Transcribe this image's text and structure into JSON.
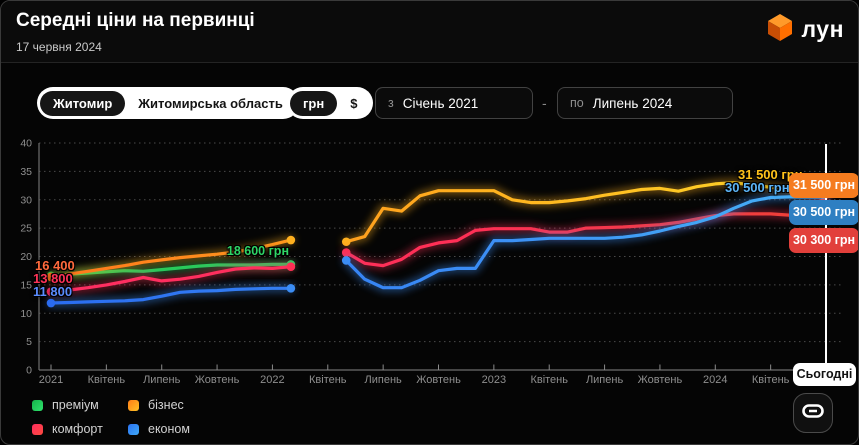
{
  "header": {
    "title": "Середні ціни на первинці",
    "date": "17 червня 2024",
    "logo_text": "лун",
    "brand_color": "#ff7a00"
  },
  "filters": {
    "city_toggle": {
      "options": [
        "Житомир",
        "Житомирська область"
      ],
      "selected": "Житомир"
    },
    "currency_toggle": {
      "options": [
        "грн",
        "$"
      ],
      "selected": "грн"
    },
    "date_from": {
      "prefix": "з",
      "value": "Січень 2021"
    },
    "range_separator": "-",
    "date_to": {
      "prefix": "по",
      "value": "Липень 2024"
    }
  },
  "chart_data": {
    "type": "line",
    "title": "Середні ціни на первинці, грн",
    "x_start": "Січень 2021",
    "x_end": "Липень 2024",
    "x_unit": "month",
    "x_tick_labels": [
      "2021",
      "Квітень",
      "Липень",
      "Жовтень",
      "2022",
      "Квітень",
      "Липень",
      "Жовтень",
      "2023",
      "Квітень",
      "Липень",
      "Жовтень",
      "2024",
      "Квітень"
    ],
    "y_ticks": [
      0,
      5,
      10,
      15,
      20,
      25,
      30,
      35,
      40
    ],
    "ylim": [
      0,
      40
    ],
    "y_scale_note": "тис. грн",
    "grid": "dotted",
    "gap_months": [
      "Березень 2022",
      "Квітень 2022"
    ],
    "series": [
      {
        "name": "преміум",
        "colors": {
          "start": "#1ec95b",
          "mid": "#25d665",
          "end": "#31e273"
        },
        "values": [
          16600,
          16900,
          17100,
          17300,
          17500,
          17400,
          17700,
          18000,
          18300,
          18500,
          18500,
          18500,
          18600,
          18600,
          null,
          null,
          null,
          null,
          null,
          null,
          null,
          null,
          null,
          null,
          null,
          null,
          null,
          null,
          null,
          null,
          null,
          null,
          null,
          null,
          null,
          null,
          null,
          null,
          null,
          null,
          null,
          null,
          null
        ]
      },
      {
        "name": "бізнес",
        "colors": {
          "start": "#ff761c",
          "mid": "#ffb01e",
          "end": "#ffd829"
        },
        "values": [
          16400,
          16900,
          17400,
          17900,
          18400,
          19000,
          19400,
          19800,
          20100,
          20400,
          20800,
          21400,
          22100,
          22900,
          null,
          null,
          22600,
          23500,
          28500,
          28000,
          30700,
          31600,
          31600,
          31600,
          31600,
          30000,
          29500,
          29500,
          29800,
          30200,
          30800,
          31300,
          31800,
          32000,
          31500,
          32300,
          32800,
          33000,
          32600,
          32200,
          31800,
          31500,
          31500
        ]
      },
      {
        "name": "комфорт",
        "colors": {
          "start": "#ff2e63",
          "mid": "#ff2f55",
          "end": "#ee4136"
        },
        "values": [
          13800,
          14100,
          14500,
          15000,
          15600,
          16300,
          15700,
          16000,
          16500,
          17200,
          17800,
          18000,
          17900,
          18200,
          null,
          null,
          20700,
          18800,
          18400,
          19500,
          21600,
          22400,
          22800,
          24600,
          24900,
          24900,
          24900,
          24300,
          24300,
          25000,
          25100,
          25200,
          25400,
          25600,
          26000,
          26600,
          27200,
          27500,
          27500,
          27500,
          27300,
          28500,
          30300
        ]
      },
      {
        "name": "економ",
        "colors": {
          "start": "#2a6cf0",
          "mid": "#3b8df5",
          "end": "#47b1f7"
        },
        "values": [
          11800,
          11900,
          12000,
          12100,
          12200,
          12400,
          13000,
          13700,
          13900,
          14000,
          14200,
          14300,
          14400,
          14400,
          null,
          null,
          19300,
          16000,
          14500,
          14500,
          15800,
          17500,
          17900,
          17900,
          22800,
          22800,
          23000,
          23200,
          23200,
          23200,
          23200,
          23400,
          23800,
          24500,
          25300,
          26000,
          27000,
          28500,
          29800,
          30400,
          30500,
          30500,
          30500
        ]
      }
    ]
  },
  "annotations": {
    "left_labels": [
      {
        "text": "16 400",
        "series": "бізнес",
        "color": "#ff6a3d"
      },
      {
        "text": "13 800",
        "series": "комфорт",
        "color": "#ff3358"
      },
      {
        "text": "11 800",
        "series": "економ",
        "color": "#5b8cff"
      }
    ],
    "premium_end_label": {
      "text": "18 600 грн",
      "series": "преміум",
      "color": "#2fd566"
    },
    "end_line_labels": [
      {
        "text": "31 500 грн",
        "series": "бізнес",
        "color": "#ffc21a"
      },
      {
        "text": "30 500 грн",
        "series": "економ",
        "color": "#5db5f7"
      }
    ],
    "badges": [
      {
        "text": "31 500 грн",
        "series": "бізнес",
        "bg": "#f57c1f"
      },
      {
        "text": "30 500 грн",
        "series": "економ",
        "bg": "#2e7fc2"
      },
      {
        "text": "30 300 грн",
        "series": "комфорт",
        "bg": "#e2403b"
      }
    ],
    "today_label": "Сьогодні"
  },
  "legend": {
    "items": [
      {
        "label": "преміум",
        "color": "#15b44a",
        "color2": "#2fe26d"
      },
      {
        "label": "бізнес",
        "color": "#ff7d17",
        "color2": "#ffc224"
      },
      {
        "label": "комфорт",
        "color": "#ff2d5e",
        "color2": "#fb4a3e"
      },
      {
        "label": "економ",
        "color": "#2b72f2",
        "color2": "#3fa9f7"
      }
    ]
  }
}
